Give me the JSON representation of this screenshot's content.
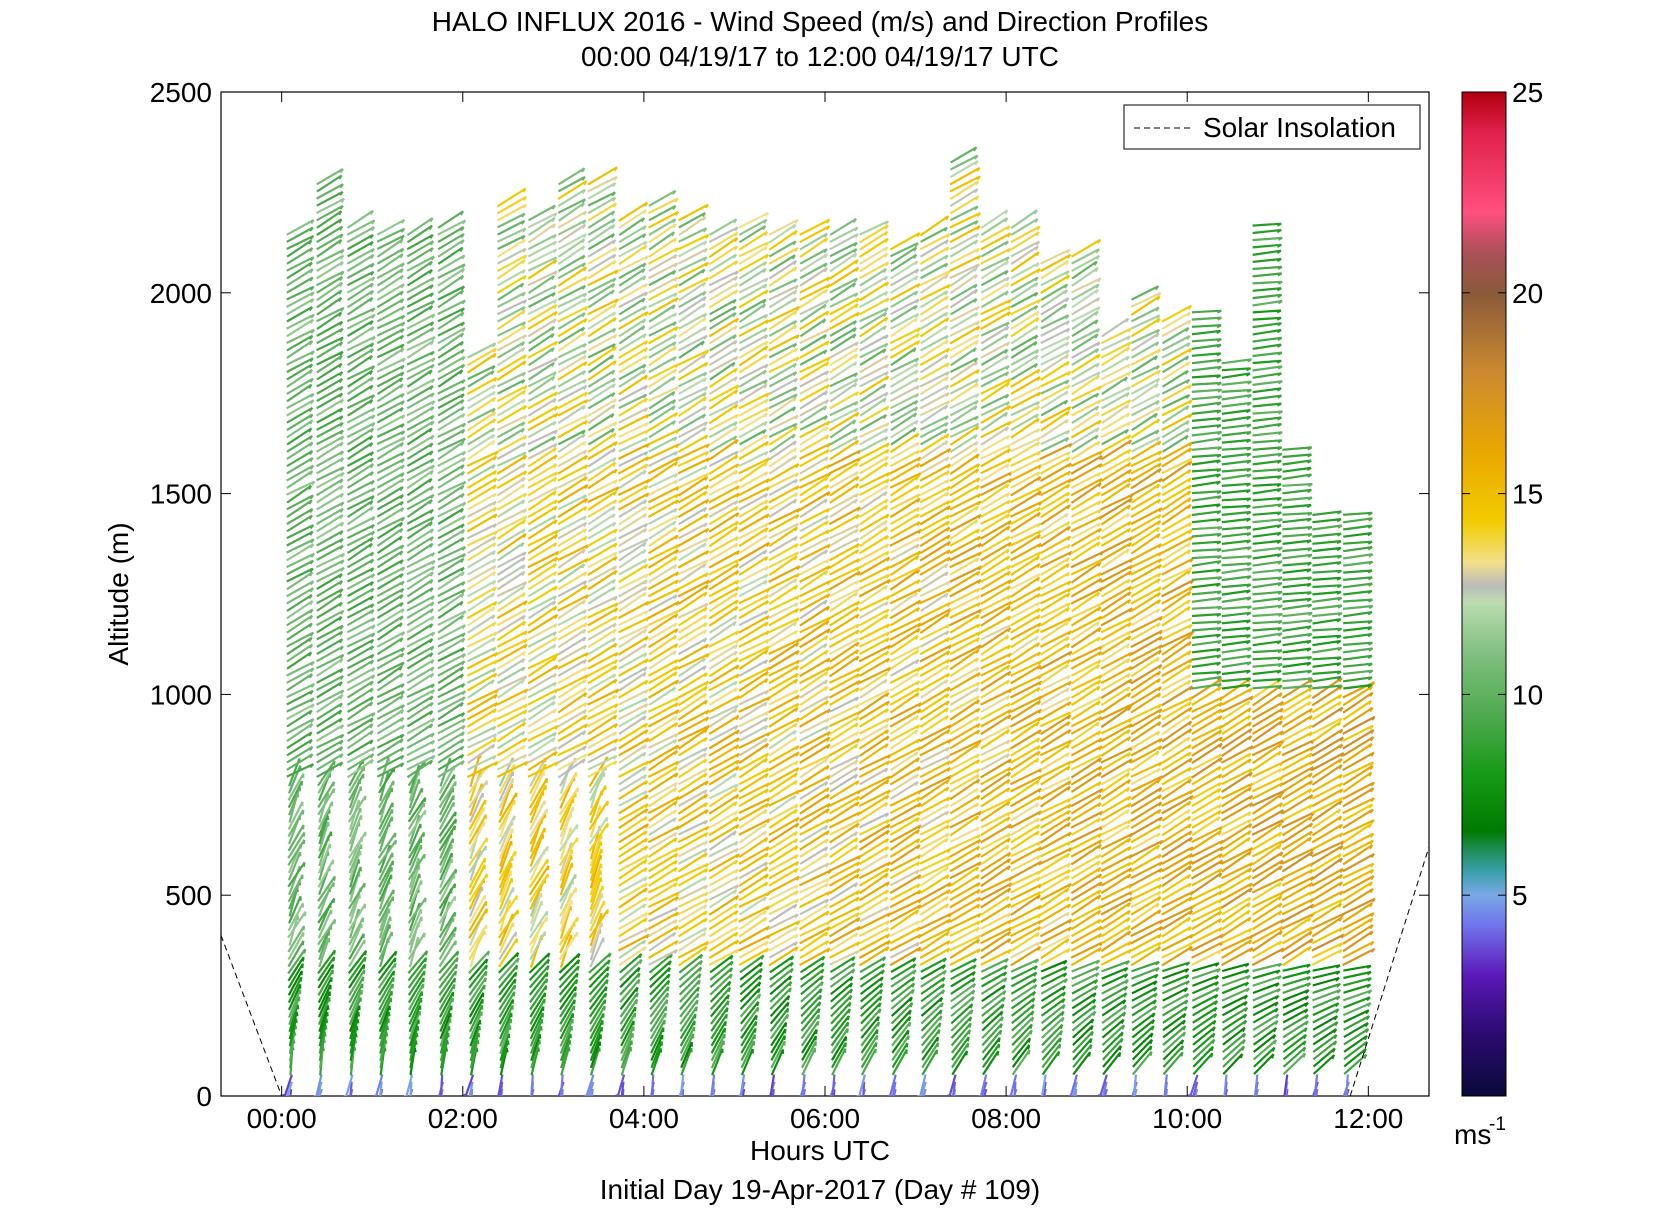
{
  "chart_data": {
    "type": "quiver",
    "title": "HALO INFLUX 2016 - Wind Speed (m/s) and Direction Profiles",
    "subtitle": "00:00 04/19/17 to 12:00 04/19/17  UTC",
    "xlabel": "Hours UTC",
    "ylabel": "Altitude (m)",
    "footer": "Initial Day 19-Apr-2017 (Day # 109)",
    "xlim": [
      -0.67,
      12.67
    ],
    "ylim": [
      0,
      2500
    ],
    "x_ticks": [
      0,
      2,
      4,
      6,
      8,
      10,
      12
    ],
    "x_tick_labels": [
      "00:00",
      "02:00",
      "04:00",
      "06:00",
      "08:00",
      "10:00",
      "12:00"
    ],
    "y_ticks": [
      0,
      500,
      1000,
      1500,
      2000,
      2500
    ],
    "y_tick_labels": [
      "0",
      "500",
      "1000",
      "1500",
      "2000",
      "2500"
    ],
    "legend": {
      "entries": [
        "Solar Insolation"
      ],
      "placement": "top-right",
      "line_style": "dashed"
    },
    "colorbar": {
      "unit_label": "ms",
      "unit_exponent": "-1",
      "range": [
        0,
        25
      ],
      "ticks": [
        5,
        10,
        15,
        20,
        25
      ],
      "tick_labels": [
        "5",
        "10",
        "15",
        "20",
        "25"
      ],
      "stops": [
        {
          "v": 0,
          "c": "#0a0a3a"
        },
        {
          "v": 1.5,
          "c": "#2a0a6e"
        },
        {
          "v": 3,
          "c": "#5a18b8"
        },
        {
          "v": 4.2,
          "c": "#7070ea"
        },
        {
          "v": 5,
          "c": "#7aa8e8"
        },
        {
          "v": 5.6,
          "c": "#3aa0a8"
        },
        {
          "v": 6.2,
          "c": "#1a8a4a"
        },
        {
          "v": 6.6,
          "c": "#007a00"
        },
        {
          "v": 8,
          "c": "#169a16"
        },
        {
          "v": 9.5,
          "c": "#50aa50"
        },
        {
          "v": 11,
          "c": "#80c080"
        },
        {
          "v": 12.3,
          "c": "#bcdcb0"
        },
        {
          "v": 12.7,
          "c": "#bbbbbb"
        },
        {
          "v": 13.3,
          "c": "#f3e08a"
        },
        {
          "v": 14.3,
          "c": "#f2cc00"
        },
        {
          "v": 16,
          "c": "#eaa800"
        },
        {
          "v": 18,
          "c": "#cc8a30"
        },
        {
          "v": 20,
          "c": "#8a5a3a"
        },
        {
          "v": 21,
          "c": "#aa5058"
        },
        {
          "v": 22,
          "c": "#ff5080"
        },
        {
          "v": 24,
          "c": "#e0204a"
        },
        {
          "v": 25,
          "c": "#b00010"
        }
      ]
    },
    "solar_insolation": {
      "left_segment": [
        [
          -0.67,
          400
        ],
        [
          0,
          0
        ]
      ],
      "right_segment": [
        [
          11.8,
          0
        ],
        [
          12.67,
          620
        ]
      ]
    },
    "profile_times": [
      0.1,
      0.43,
      0.77,
      1.1,
      1.43,
      1.77,
      2.1,
      2.43,
      2.77,
      3.1,
      3.43,
      3.77,
      4.1,
      4.43,
      4.77,
      5.1,
      5.43,
      5.77,
      6.1,
      6.43,
      6.77,
      7.1,
      7.43,
      7.77,
      8.1,
      8.43,
      8.77,
      9.1,
      9.43,
      9.77,
      10.1,
      10.43,
      10.77,
      11.1,
      11.43,
      11.77
    ],
    "profile_top_altitudes": [
      2150,
      2280,
      2170,
      2150,
      2160,
      2170,
      1850,
      2230,
      2200,
      2280,
      2280,
      2200,
      2230,
      2200,
      2150,
      2170,
      2150,
      2150,
      2160,
      2160,
      2130,
      2150,
      2330,
      2180,
      2180,
      2080,
      2100,
      1900,
      2000,
      1950,
      1960,
      1840,
      2170,
      1620,
      1460,
      1460
    ],
    "wind_field": {
      "description": "arrow colour = speed (colorbar), arrow direction = wind direction; values estimated",
      "layers": [
        {
          "alt": [
            0,
            60
          ],
          "speed": 4,
          "direction": "down / down-left"
        },
        {
          "alt": [
            60,
            300
          ],
          "speed": 8,
          "direction": "steep, turning from near-vertical to up-right with time"
        },
        {
          "alt": [
            300,
            1600
          ],
          "speed": 13,
          "direction": "up-right, ~20-30 degrees above horizontal"
        },
        {
          "alt": [
            1600,
            2300
          ],
          "speed": 11,
          "direction": "up-right"
        }
      ]
    }
  }
}
